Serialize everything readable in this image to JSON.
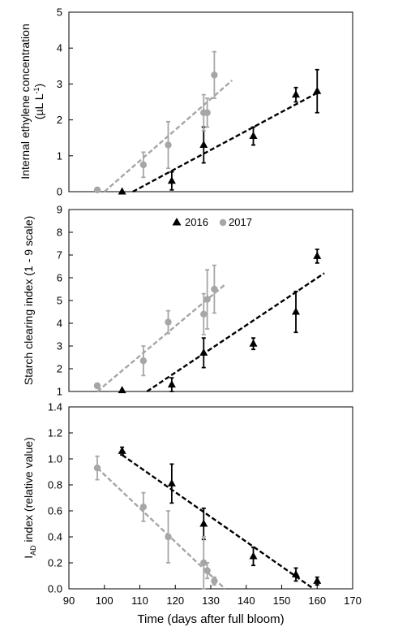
{
  "chart_data": [
    {
      "type": "scatter",
      "ylabel_main": "Internal ethylene concentration",
      "ylabel_unit_prefix": "(µL L",
      "ylabel_unit_sup": "-1",
      "ylabel_unit_suffix": ")",
      "xlim": [
        90,
        170
      ],
      "ylim": [
        0,
        5
      ],
      "y_ticks": [
        "0",
        "1",
        "2",
        "3",
        "4",
        "5"
      ],
      "series": [
        {
          "name": "2016",
          "color": "#000000",
          "marker": "triangle",
          "points": [
            {
              "x": 105,
              "y": 0.0,
              "err": 0.0
            },
            {
              "x": 119,
              "y": 0.3,
              "err": 0.25
            },
            {
              "x": 128,
              "y": 1.3,
              "err": 0.5
            },
            {
              "x": 142,
              "y": 1.55,
              "err": 0.25
            },
            {
              "x": 154,
              "y": 2.7,
              "err": 0.2
            },
            {
              "x": 160,
              "y": 2.8,
              "err": 0.6
            }
          ],
          "trend": [
            [
              108,
              0.0
            ],
            [
              160,
              2.75
            ]
          ]
        },
        {
          "name": "2017",
          "color": "#a6a6a6",
          "marker": "circle",
          "points": [
            {
              "x": 98,
              "y": 0.05,
              "err": 0.0
            },
            {
              "x": 111,
              "y": 0.75,
              "err": 0.35
            },
            {
              "x": 118,
              "y": 1.3,
              "err": 0.65
            },
            {
              "x": 128,
              "y": 2.2,
              "err": 0.5
            },
            {
              "x": 129,
              "y": 2.2,
              "err": 0.4
            },
            {
              "x": 131,
              "y": 3.25,
              "err": 0.65
            }
          ],
          "trend": [
            [
              100,
              0.0
            ],
            [
              136,
              3.1
            ]
          ]
        }
      ]
    },
    {
      "type": "scatter",
      "ylabel": "Starch clearing index (1 - 9 scale)",
      "xlim": [
        90,
        170
      ],
      "ylim": [
        1,
        9
      ],
      "y_ticks": [
        "1",
        "2",
        "3",
        "4",
        "5",
        "6",
        "7",
        "8",
        "9"
      ],
      "legend": {
        "position": "top-center",
        "entries": [
          "2016",
          "2017"
        ]
      },
      "series": [
        {
          "name": "2016",
          "color": "#000000",
          "marker": "triangle",
          "points": [
            {
              "x": 105,
              "y": 1.05,
              "err": 0.0
            },
            {
              "x": 119,
              "y": 1.3,
              "err": 0.3
            },
            {
              "x": 128,
              "y": 2.7,
              "err": 0.65
            },
            {
              "x": 142,
              "y": 3.1,
              "err": 0.25
            },
            {
              "x": 154,
              "y": 4.5,
              "err": 0.9
            },
            {
              "x": 160,
              "y": 6.95,
              "err": 0.3
            }
          ],
          "trend": [
            [
              112,
              1.0
            ],
            [
              162,
              6.2
            ]
          ]
        },
        {
          "name": "2017",
          "color": "#a6a6a6",
          "marker": "circle",
          "points": [
            {
              "x": 98,
              "y": 1.25,
              "err": 0.1
            },
            {
              "x": 111,
              "y": 2.35,
              "err": 0.65
            },
            {
              "x": 118,
              "y": 4.05,
              "err": 0.5
            },
            {
              "x": 128,
              "y": 4.4,
              "err": 0.9
            },
            {
              "x": 129,
              "y": 5.05,
              "err": 1.3
            },
            {
              "x": 131,
              "y": 5.5,
              "err": 1.05
            }
          ],
          "trend": [
            [
              98,
              1.0
            ],
            [
              134,
              5.7
            ]
          ]
        }
      ]
    },
    {
      "type": "scatter",
      "ylabel_prefix": "I",
      "ylabel_sub": "AD",
      "ylabel_suffix": " index (relative value)",
      "xlabel": "Time (days after full bloom)",
      "xlim": [
        90,
        170
      ],
      "ylim": [
        0,
        1.4
      ],
      "x_ticks": [
        "90",
        "100",
        "110",
        "120",
        "130",
        "140",
        "150",
        "160",
        "170"
      ],
      "y_ticks": [
        "0.0",
        "0.2",
        "0.4",
        "0.6",
        "0.8",
        "1.0",
        "1.2",
        "1.4"
      ],
      "series": [
        {
          "name": "2016",
          "color": "#000000",
          "marker": "triangle",
          "points": [
            {
              "x": 105,
              "y": 1.06,
              "err": 0.03
            },
            {
              "x": 119,
              "y": 0.81,
              "err": 0.15
            },
            {
              "x": 128,
              "y": 0.5,
              "err": 0.12
            },
            {
              "x": 142,
              "y": 0.25,
              "err": 0.07
            },
            {
              "x": 154,
              "y": 0.11,
              "err": 0.05
            },
            {
              "x": 160,
              "y": 0.06,
              "err": 0.03
            }
          ],
          "trend": [
            [
              105,
              1.03
            ],
            [
              159,
              0.0
            ]
          ]
        },
        {
          "name": "2017",
          "color": "#a6a6a6",
          "marker": "circle",
          "points": [
            {
              "x": 98,
              "y": 0.93,
              "err": 0.09
            },
            {
              "x": 111,
              "y": 0.63,
              "err": 0.11
            },
            {
              "x": 118,
              "y": 0.4,
              "err": 0.2
            },
            {
              "x": 128,
              "y": 0.2,
              "err": 0.2
            },
            {
              "x": 129,
              "y": 0.14,
              "err": 0.06
            },
            {
              "x": 131,
              "y": 0.06,
              "err": 0.03
            }
          ],
          "trend": [
            [
              98,
              0.93
            ],
            [
              134,
              0.0
            ]
          ]
        }
      ]
    }
  ]
}
